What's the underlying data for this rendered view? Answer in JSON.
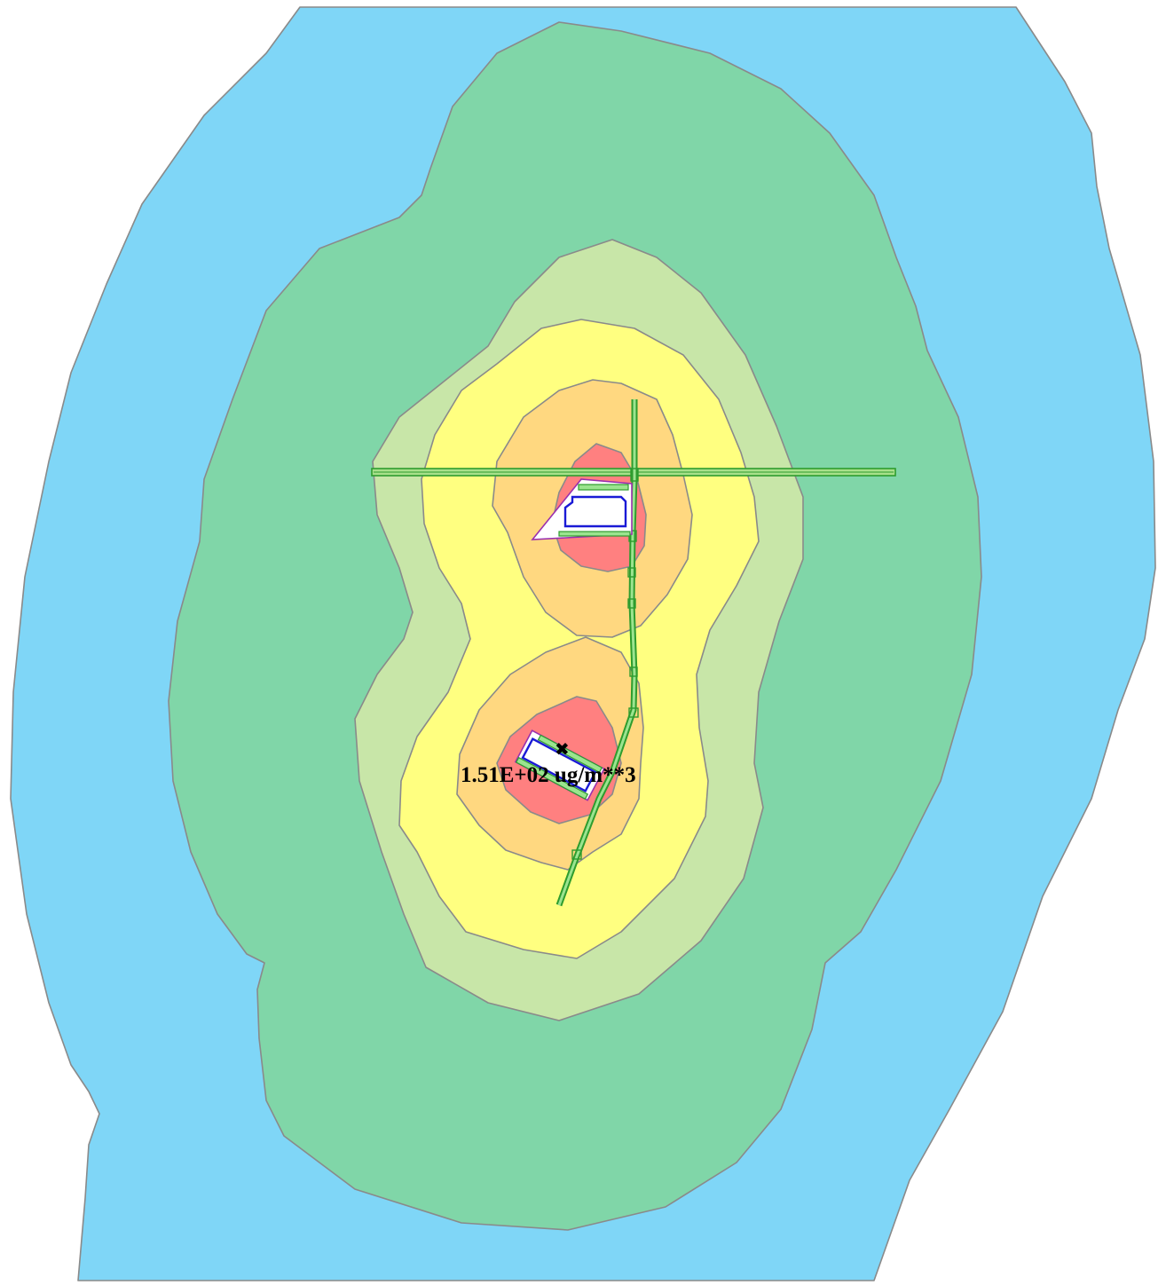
{
  "map": {
    "max_concentration_label": "1.51E+02 ug/m**3",
    "max_marker_icon": "x-marker-icon",
    "contour_colors": {
      "level_1": "#7fd6f7",
      "level_2": "#80d6a8",
      "level_3": "#c8e6a8",
      "level_4": "#ffff80",
      "level_5": "#ffd880",
      "level_6": "#ff8080"
    },
    "source_colors": {
      "road": "#2e9c2e",
      "building": "#1a1ad6",
      "facility_boundary": "#9b2fae"
    }
  }
}
